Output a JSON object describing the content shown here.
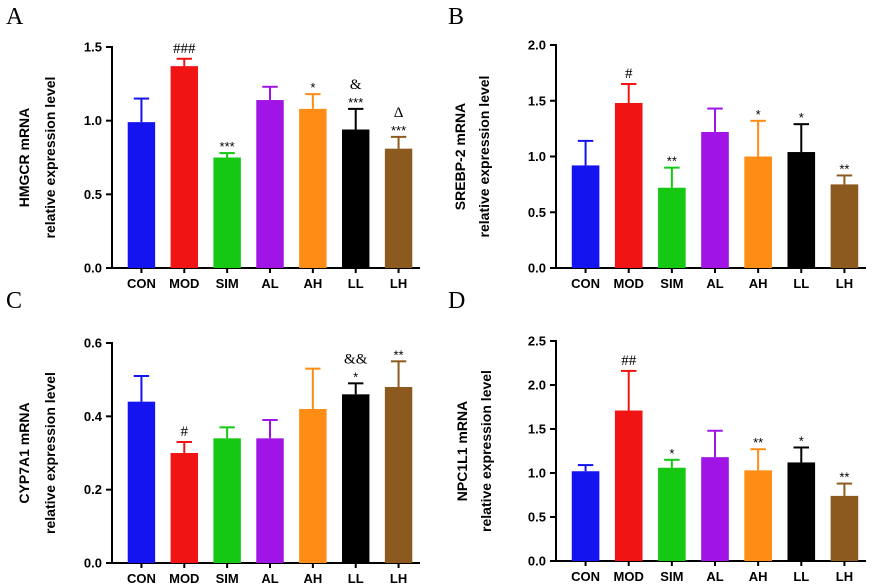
{
  "colors": {
    "CON": "#1414f0",
    "MOD": "#f01414",
    "SIM": "#14c814",
    "AL": "#a014e6",
    "AH": "#ff8c14",
    "LL": "#000000",
    "LH": "#8c5a1e"
  },
  "chart_data": [
    {
      "type": "bar",
      "panel": "A",
      "title": "",
      "ylabel_line1": "HMGCR mRNA",
      "ylabel_line2": "relative expression level",
      "categories": [
        "CON",
        "MOD",
        "SIM",
        "AL",
        "AH",
        "LL",
        "LH"
      ],
      "values": [
        0.99,
        1.37,
        0.75,
        1.14,
        1.08,
        0.94,
        0.81
      ],
      "errors": [
        0.16,
        0.05,
        0.03,
        0.09,
        0.1,
        0.14,
        0.08
      ],
      "ylim": [
        0,
        1.5
      ],
      "yticks": [
        "0.0",
        "0.5",
        "1.0",
        "1.5"
      ],
      "annotations": [
        {
          "category": "MOD",
          "lines": [
            "###"
          ]
        },
        {
          "category": "SIM",
          "lines": [
            "***"
          ]
        },
        {
          "category": "AH",
          "lines": [
            "*"
          ]
        },
        {
          "category": "LL",
          "lines": [
            "&",
            "***"
          ]
        },
        {
          "category": "LH",
          "lines": [
            "Δ",
            "***"
          ]
        }
      ]
    },
    {
      "type": "bar",
      "panel": "B",
      "title": "",
      "ylabel_line1": "SREBP-2 mRNA",
      "ylabel_line2": "relative expression level",
      "categories": [
        "CON",
        "MOD",
        "SIM",
        "AL",
        "AH",
        "LL",
        "LH"
      ],
      "values": [
        0.92,
        1.48,
        0.72,
        1.22,
        1.0,
        1.04,
        0.75
      ],
      "errors": [
        0.22,
        0.17,
        0.18,
        0.21,
        0.32,
        0.25,
        0.08
      ],
      "ylim": [
        0,
        2.0
      ],
      "yticks": [
        "0.0",
        "0.5",
        "1.0",
        "1.5",
        "2.0"
      ],
      "annotations": [
        {
          "category": "MOD",
          "lines": [
            "#"
          ]
        },
        {
          "category": "SIM",
          "lines": [
            "**"
          ]
        },
        {
          "category": "AH",
          "lines": [
            "*"
          ]
        },
        {
          "category": "LL",
          "lines": [
            "*"
          ]
        },
        {
          "category": "LH",
          "lines": [
            "**"
          ]
        }
      ]
    },
    {
      "type": "bar",
      "panel": "C",
      "title": "",
      "ylabel_line1": "CYP7A1 mRNA",
      "ylabel_line2": "relative expression level",
      "categories": [
        "CON",
        "MOD",
        "SIM",
        "AL",
        "AH",
        "LL",
        "LH"
      ],
      "values": [
        0.44,
        0.3,
        0.34,
        0.34,
        0.42,
        0.46,
        0.48
      ],
      "errors": [
        0.07,
        0.03,
        0.03,
        0.05,
        0.11,
        0.03,
        0.07
      ],
      "ylim": [
        0,
        0.6
      ],
      "yticks": [
        "0.0",
        "0.2",
        "0.4",
        "0.6"
      ],
      "annotations": [
        {
          "category": "MOD",
          "lines": [
            "#"
          ]
        },
        {
          "category": "LL",
          "lines": [
            "&&",
            "*"
          ]
        },
        {
          "category": "LH",
          "lines": [
            "**"
          ]
        }
      ]
    },
    {
      "type": "bar",
      "panel": "D",
      "title": "",
      "ylabel_line1": "NPC1L1 mRNA",
      "ylabel_line2": "relative expression level",
      "categories": [
        "CON",
        "MOD",
        "SIM",
        "AL",
        "AH",
        "LL",
        "LH"
      ],
      "values": [
        1.02,
        1.71,
        1.06,
        1.18,
        1.03,
        1.12,
        0.74
      ],
      "errors": [
        0.07,
        0.45,
        0.09,
        0.3,
        0.24,
        0.17,
        0.14
      ],
      "ylim": [
        0,
        2.5
      ],
      "yticks": [
        "0.0",
        "0.5",
        "1.0",
        "1.5",
        "2.0",
        "2.5"
      ],
      "annotations": [
        {
          "category": "MOD",
          "lines": [
            "##"
          ]
        },
        {
          "category": "SIM",
          "lines": [
            "*"
          ]
        },
        {
          "category": "AH",
          "lines": [
            "**"
          ]
        },
        {
          "category": "LL",
          "lines": [
            "*"
          ]
        },
        {
          "category": "LH",
          "lines": [
            "**"
          ]
        }
      ]
    }
  ]
}
